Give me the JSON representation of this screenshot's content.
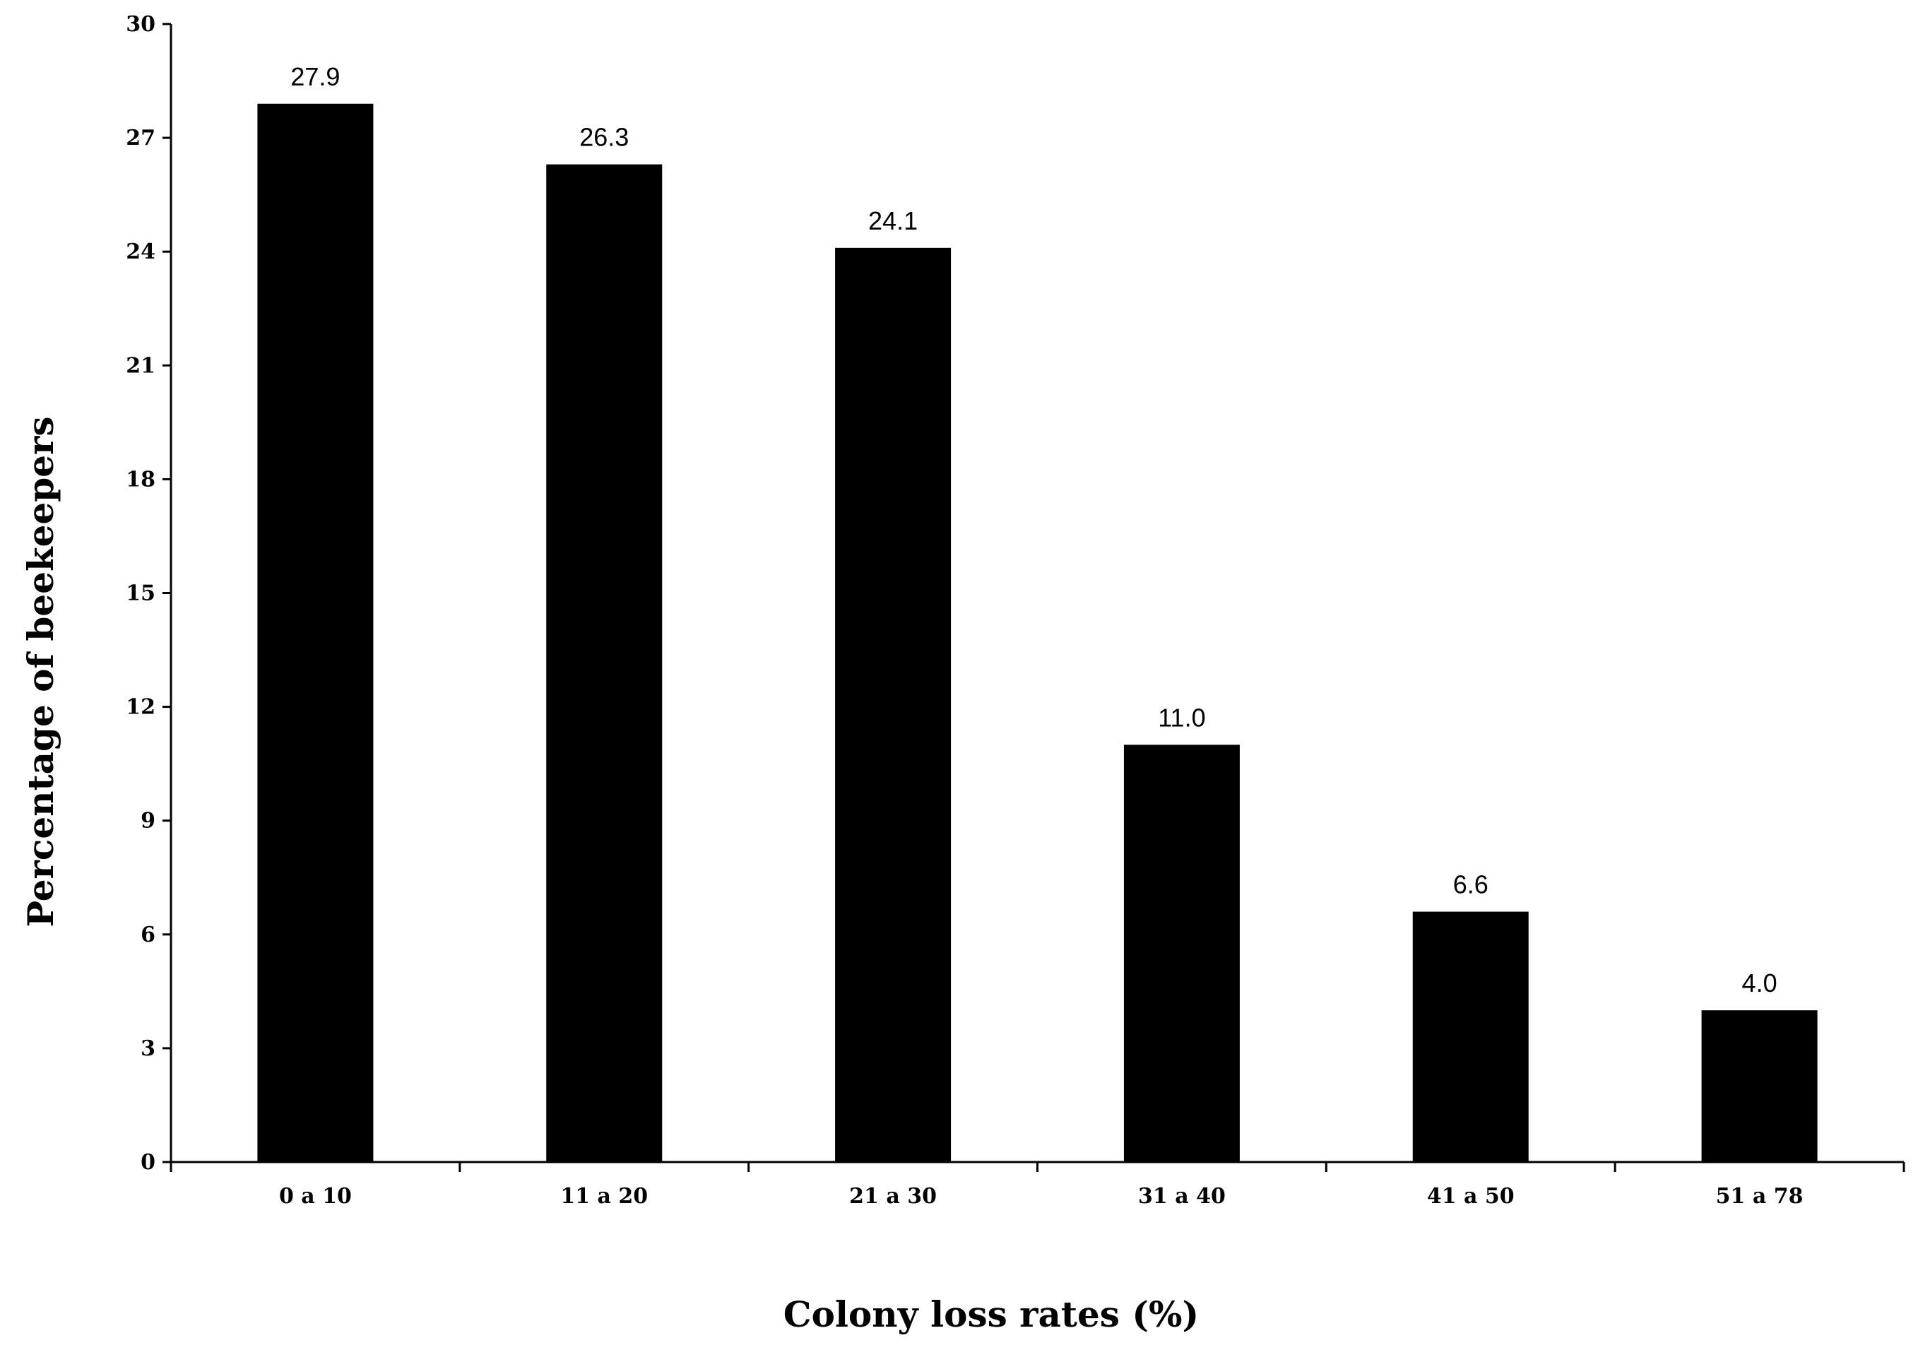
{
  "chart_data": {
    "type": "bar",
    "categories": [
      "0 a 10",
      "11 a 20",
      "21 a 30",
      "31 a 40",
      "41 a 50",
      "51 a 78"
    ],
    "values": [
      27.9,
      26.3,
      24.1,
      11.0,
      6.6,
      4.0
    ],
    "data_labels": [
      "27.9",
      "26.3",
      "24.1",
      "11.0",
      "6.6",
      "4.0"
    ],
    "xlabel": "Colony loss rates (%)",
    "ylabel": "Percentage of beekeepers",
    "ylim": [
      0,
      30
    ],
    "yticks": [
      0,
      3,
      6,
      9,
      12,
      15,
      18,
      21,
      24,
      27,
      30
    ],
    "grid": false,
    "legend": "none",
    "bar_color": "#000000"
  }
}
